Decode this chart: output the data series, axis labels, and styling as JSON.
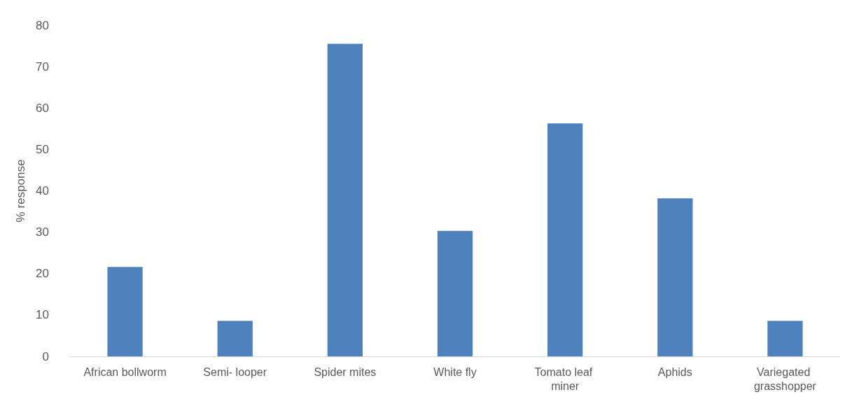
{
  "chart_data": {
    "type": "bar",
    "ylabel": "% response",
    "categories": [
      "African bollworm",
      "Semi- looper",
      "Spider mites",
      "White fly",
      "Tomato leaf miner",
      "Aphids",
      "Variegated grasshopper"
    ],
    "values": [
      21.6,
      8.6,
      75.5,
      30.3,
      56.3,
      38.2,
      8.6
    ],
    "color": "#4f81bd",
    "ylim": [
      0,
      80
    ],
    "yticks": [
      0,
      10,
      20,
      30,
      40,
      50,
      60,
      70,
      80
    ],
    "grid": false
  }
}
